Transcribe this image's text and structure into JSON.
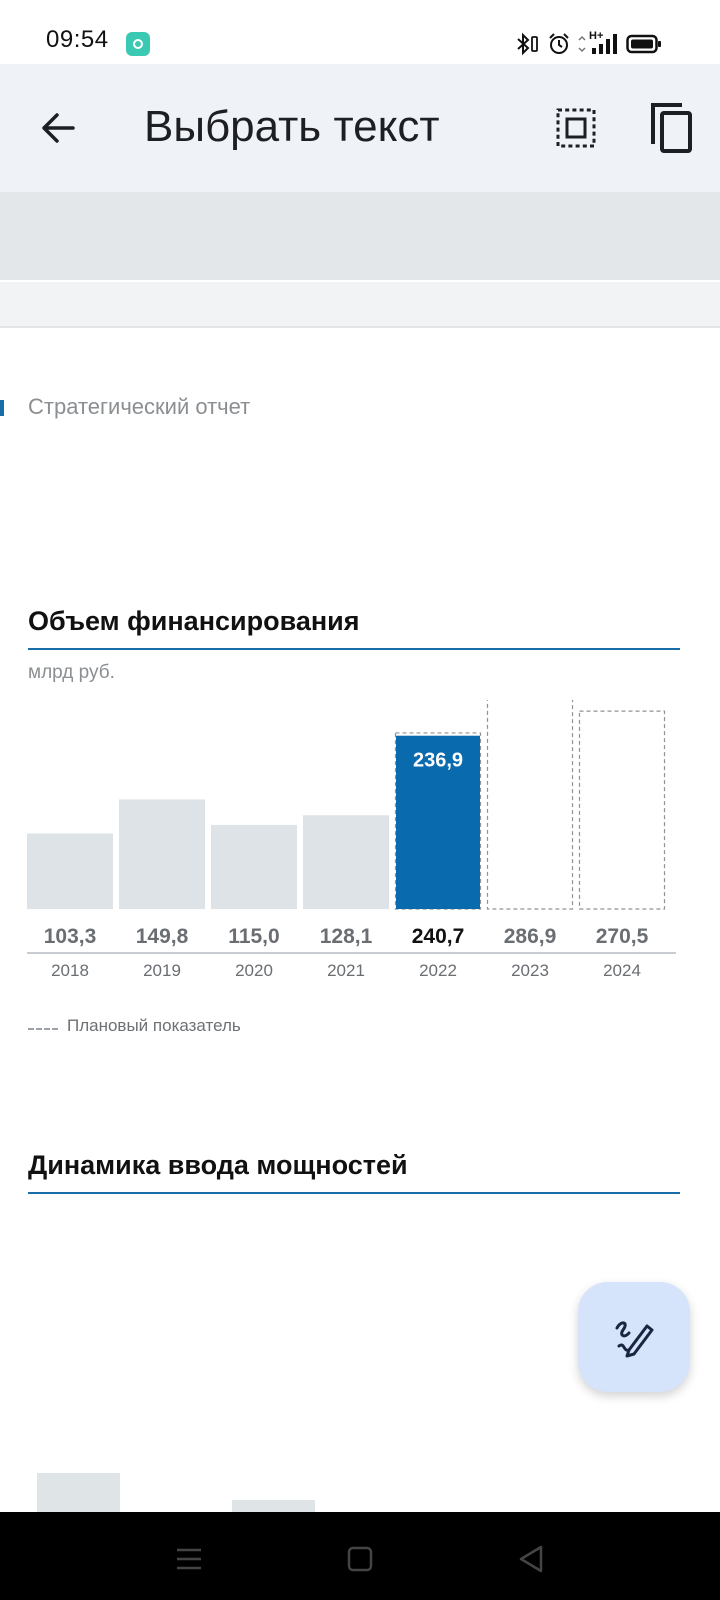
{
  "status_bar": {
    "time": "09:54",
    "icons": [
      "app-notification-icon",
      "bluetooth-icon",
      "alarm-icon",
      "signal-icon",
      "battery-icon"
    ],
    "network_label": "H+"
  },
  "app_bar": {
    "title": "Выбрать текст",
    "icons": [
      "back-arrow-icon",
      "select-all-icon",
      "copy-icon"
    ]
  },
  "document": {
    "page_header": "Стратегический отчет",
    "section1_title": "Объем финансирования",
    "unit": "млрд руб.",
    "legend": "Плановый показатель",
    "section2_title": "Динамика ввода мощностей"
  },
  "chart_data": {
    "type": "bar",
    "categories": [
      "2018",
      "2019",
      "2020",
      "2021",
      "2022",
      "2023",
      "2024"
    ],
    "series": [
      {
        "values": [
          103.3,
          149.8,
          115.0,
          128.1,
          240.7,
          286.9,
          270.5
        ]
      }
    ],
    "value_labels": [
      "103,3",
      "149,8",
      "115,0",
      "128,1",
      "240,7",
      "286,9",
      "270,5"
    ],
    "actual_2022": 236.9,
    "actual_2022_label": "236,9",
    "planned_categories": [
      "2022",
      "2023",
      "2024"
    ],
    "highlight_category": "2022",
    "colors": {
      "bar": "#dde3e6",
      "highlight": "#0a6aae",
      "planned_border": "#8f9397"
    },
    "title": "Объем финансирования",
    "ylabel": "млрд руб.",
    "ylim": [
      0,
      300
    ],
    "grid": false
  },
  "fab": {
    "icon": "handwriting-pen-icon"
  },
  "nav_bar": {
    "icons": [
      "menu-icon",
      "home-square-icon",
      "back-triangle-icon"
    ]
  },
  "colors": {
    "app_bar_bg": "#eff3f8",
    "accent": "#1a6ea8",
    "fab_bg": "#d5e3fb"
  }
}
